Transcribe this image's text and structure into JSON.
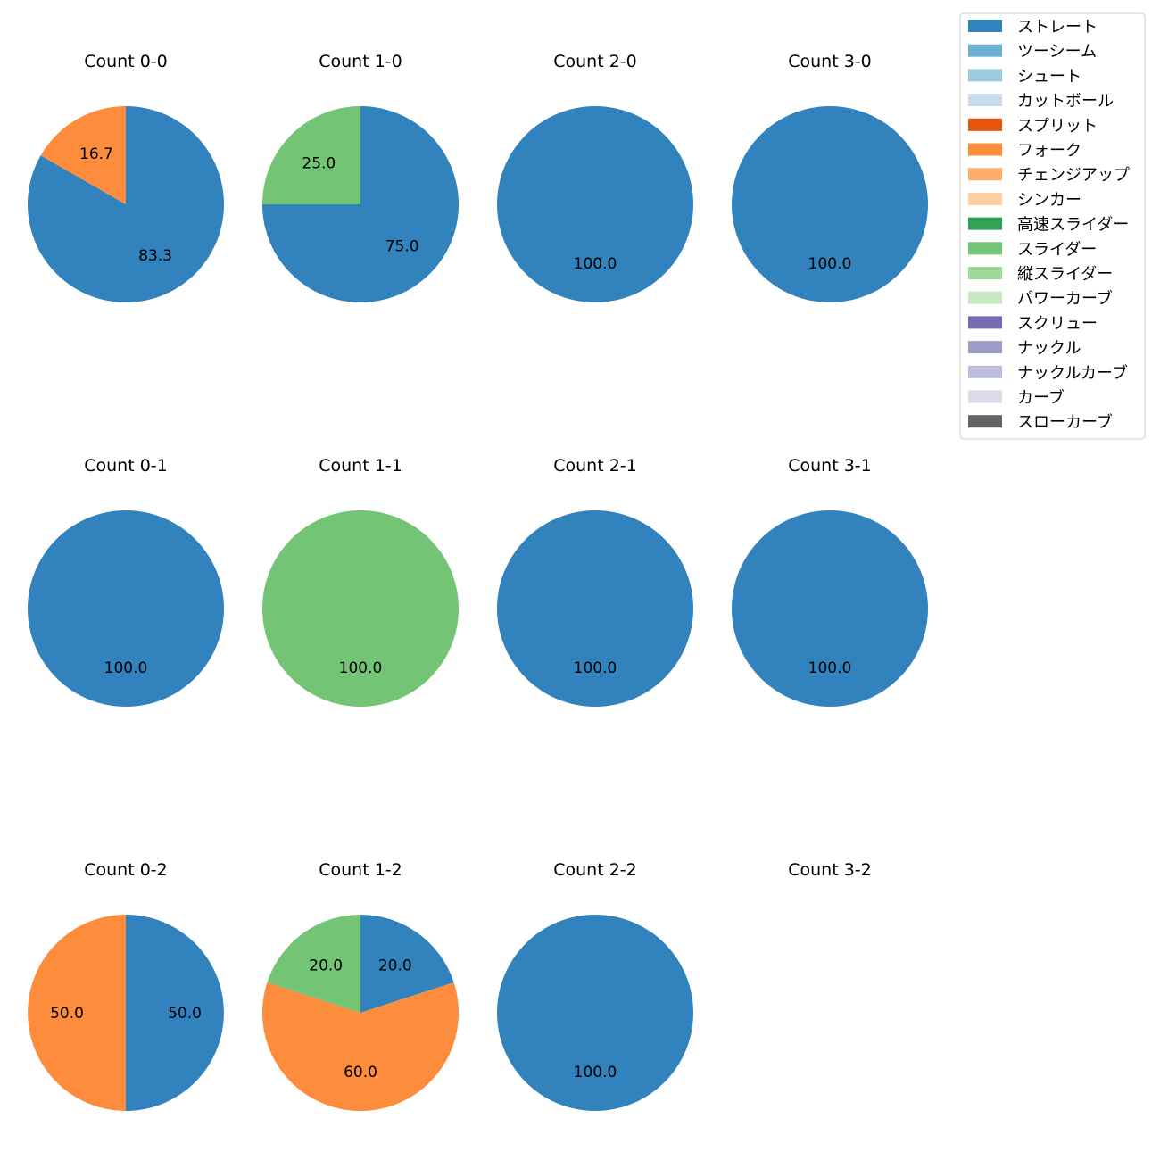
{
  "chart_data": {
    "type": "pie",
    "start_angle_deg": 90,
    "direction": "clockwise",
    "legend_position": "top-right",
    "legend": [
      {
        "name": "ストレート",
        "color": "#3182bd"
      },
      {
        "name": "ツーシーム",
        "color": "#6baed6"
      },
      {
        "name": "シュート",
        "color": "#9ecae1"
      },
      {
        "name": "カットボール",
        "color": "#c6dbef"
      },
      {
        "name": "スプリット",
        "color": "#e6550d"
      },
      {
        "name": "フォーク",
        "color": "#fd8d3c"
      },
      {
        "name": "チェンジアップ",
        "color": "#fdae6b"
      },
      {
        "name": "シンカー",
        "color": "#fdd0a2"
      },
      {
        "name": "高速スライダー",
        "color": "#31a354"
      },
      {
        "name": "スライダー",
        "color": "#74c476"
      },
      {
        "name": "縦スライダー",
        "color": "#a1d99b"
      },
      {
        "name": "パワーカーブ",
        "color": "#c7e9c0"
      },
      {
        "name": "スクリュー",
        "color": "#756bb1"
      },
      {
        "name": "ナックル",
        "color": "#9e9ac8"
      },
      {
        "name": "ナックルカーブ",
        "color": "#bcbddc"
      },
      {
        "name": "カーブ",
        "color": "#dadaeb"
      },
      {
        "name": "スローカーブ",
        "color": "#636363"
      }
    ],
    "charts": [
      {
        "title": "Count 0-0",
        "slices": [
          {
            "pitch": "ストレート",
            "value": 83.3,
            "label": "83.3"
          },
          {
            "pitch": "フォーク",
            "value": 16.7,
            "label": "16.7"
          }
        ]
      },
      {
        "title": "Count 1-0",
        "slices": [
          {
            "pitch": "ストレート",
            "value": 75.0,
            "label": "75.0"
          },
          {
            "pitch": "スライダー",
            "value": 25.0,
            "label": "25.0"
          }
        ]
      },
      {
        "title": "Count 2-0",
        "slices": [
          {
            "pitch": "ストレート",
            "value": 100.0,
            "label": "100.0"
          }
        ]
      },
      {
        "title": "Count 3-0",
        "slices": [
          {
            "pitch": "ストレート",
            "value": 100.0,
            "label": "100.0"
          }
        ]
      },
      {
        "title": "Count 0-1",
        "slices": [
          {
            "pitch": "ストレート",
            "value": 100.0,
            "label": "100.0"
          }
        ]
      },
      {
        "title": "Count 1-1",
        "slices": [
          {
            "pitch": "スライダー",
            "value": 100.0,
            "label": "100.0"
          }
        ]
      },
      {
        "title": "Count 2-1",
        "slices": [
          {
            "pitch": "ストレート",
            "value": 100.0,
            "label": "100.0"
          }
        ]
      },
      {
        "title": "Count 3-1",
        "slices": [
          {
            "pitch": "ストレート",
            "value": 100.0,
            "label": "100.0"
          }
        ]
      },
      {
        "title": "Count 0-2",
        "slices": [
          {
            "pitch": "ストレート",
            "value": 50.0,
            "label": "50.0"
          },
          {
            "pitch": "フォーク",
            "value": 50.0,
            "label": "50.0"
          }
        ]
      },
      {
        "title": "Count 1-2",
        "slices": [
          {
            "pitch": "ストレート",
            "value": 20.0,
            "label": "20.0"
          },
          {
            "pitch": "フォーク",
            "value": 60.0,
            "label": "60.0"
          },
          {
            "pitch": "スライダー",
            "value": 20.0,
            "label": "20.0"
          }
        ]
      },
      {
        "title": "Count 2-2",
        "slices": [
          {
            "pitch": "ストレート",
            "value": 100.0,
            "label": "100.0"
          }
        ]
      },
      {
        "title": "Count 3-2",
        "slices": []
      }
    ]
  }
}
